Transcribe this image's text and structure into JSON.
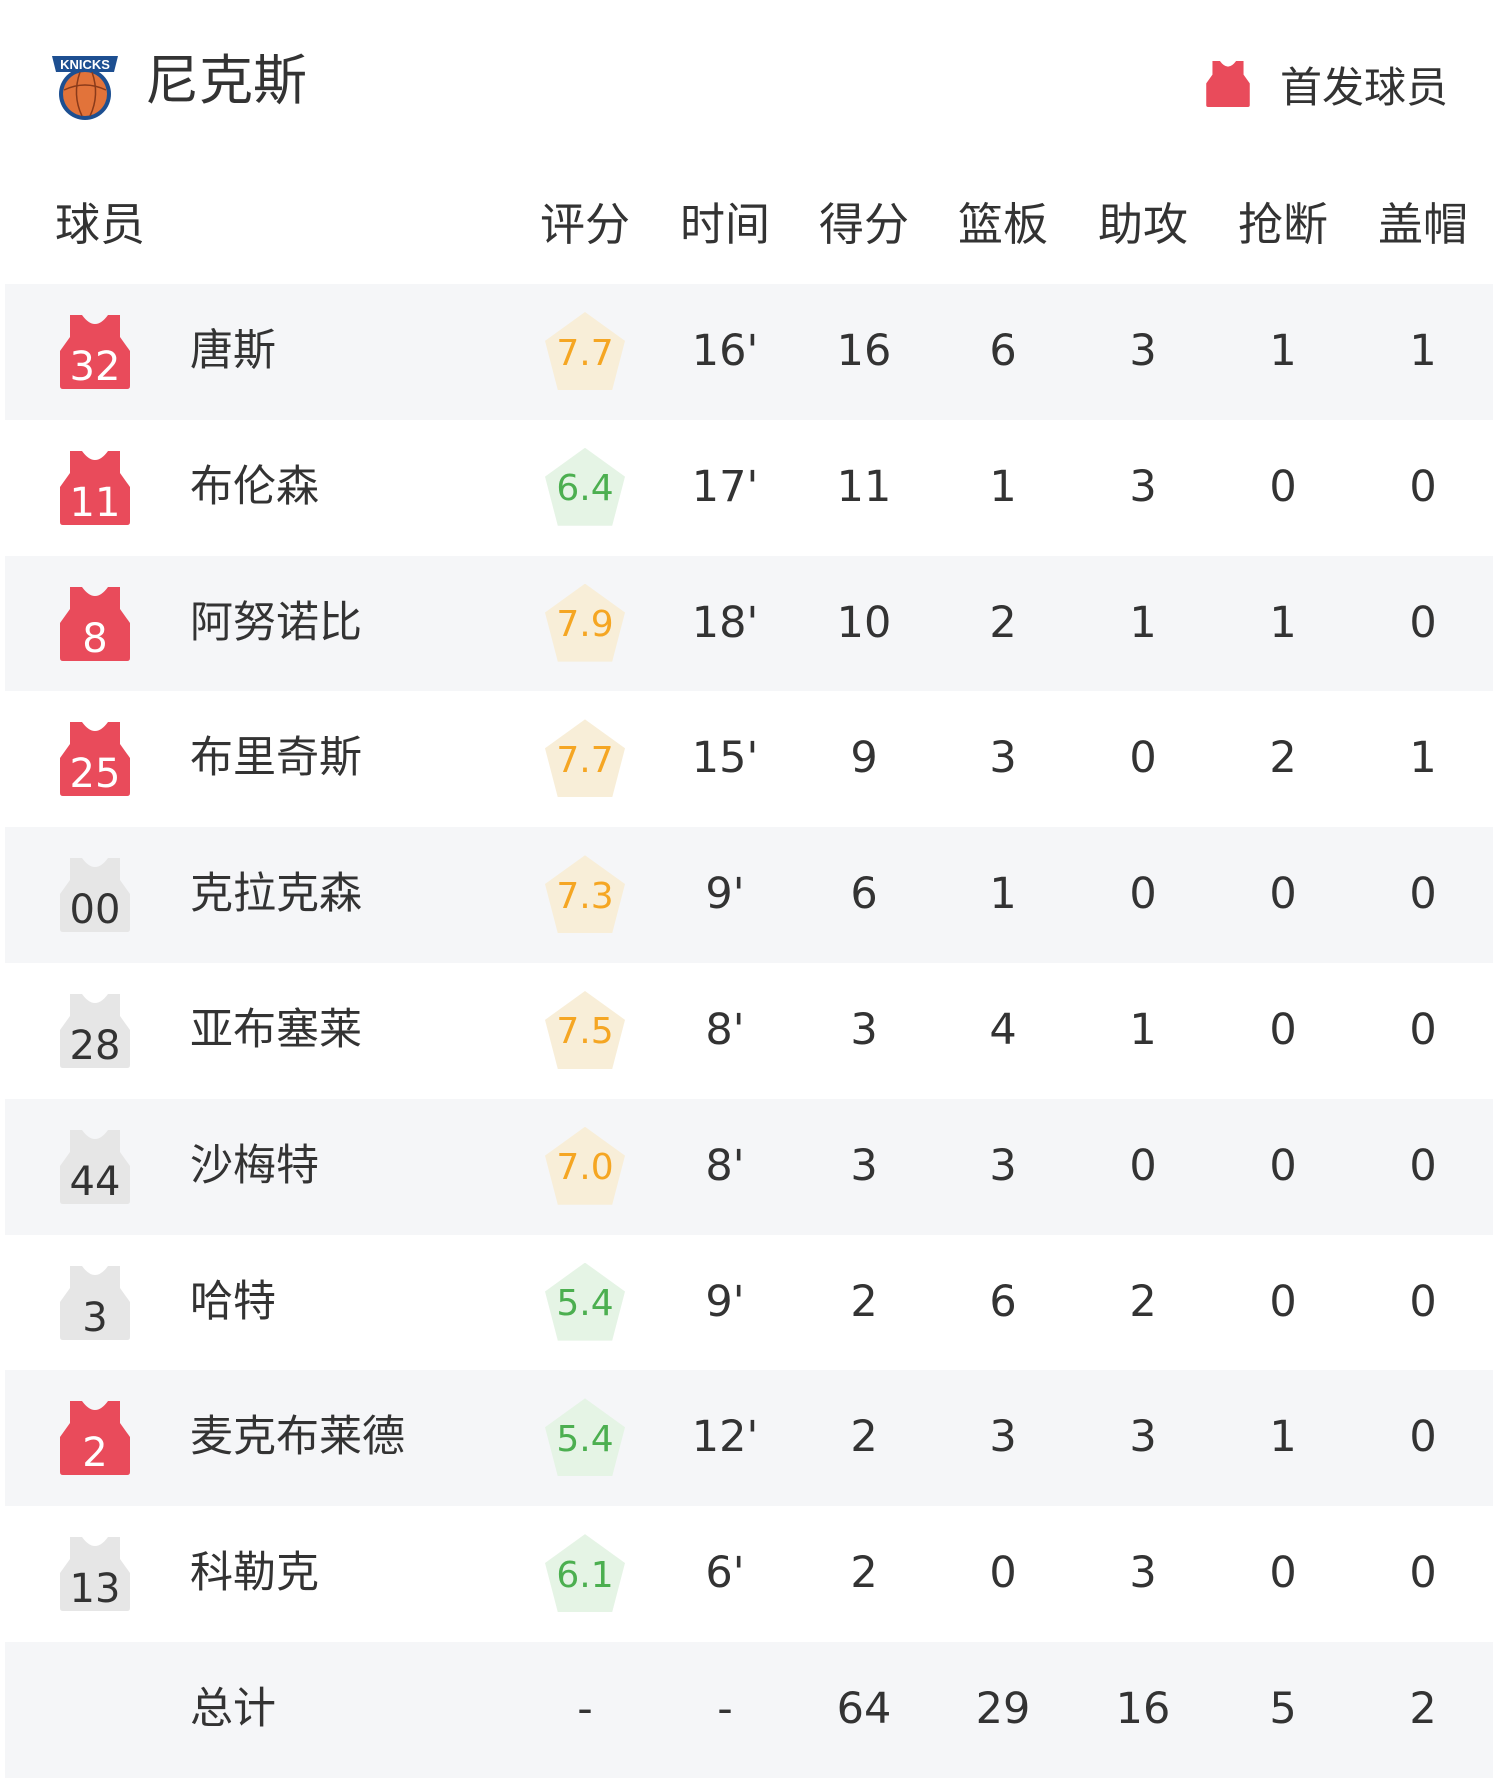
{
  "header": {
    "team_name": "尼克斯",
    "logo_text": "KNICKS",
    "legend_label": "首发球员"
  },
  "colors": {
    "starter_jersey": "#e94b5b",
    "bench_jersey": "#e6e6e6",
    "rating_high_text": "#f5a623",
    "rating_high_bg": "#f8eed8",
    "rating_low_text": "#4caf50",
    "rating_low_bg": "#e5f4e5",
    "row_alt_bg": "#f5f6f8"
  },
  "columns": {
    "player": "球员",
    "rating": "评分",
    "time": "时间",
    "points": "得分",
    "rebounds": "篮板",
    "assists": "助攻",
    "steals": "抢断",
    "blocks": "盖帽"
  },
  "players": [
    {
      "number": "32",
      "name": "唐斯",
      "starter": true,
      "rating": "7.7",
      "time": "16'",
      "points": "16",
      "rebounds": "6",
      "assists": "3",
      "steals": "1",
      "blocks": "1"
    },
    {
      "number": "11",
      "name": "布伦森",
      "starter": true,
      "rating": "6.4",
      "time": "17'",
      "points": "11",
      "rebounds": "1",
      "assists": "3",
      "steals": "0",
      "blocks": "0"
    },
    {
      "number": "8",
      "name": "阿努诺比",
      "starter": true,
      "rating": "7.9",
      "time": "18'",
      "points": "10",
      "rebounds": "2",
      "assists": "1",
      "steals": "1",
      "blocks": "0"
    },
    {
      "number": "25",
      "name": "布里奇斯",
      "starter": true,
      "rating": "7.7",
      "time": "15'",
      "points": "9",
      "rebounds": "3",
      "assists": "0",
      "steals": "2",
      "blocks": "1"
    },
    {
      "number": "00",
      "name": "克拉克森",
      "starter": false,
      "rating": "7.3",
      "time": "9'",
      "points": "6",
      "rebounds": "1",
      "assists": "0",
      "steals": "0",
      "blocks": "0"
    },
    {
      "number": "28",
      "name": "亚布塞莱",
      "starter": false,
      "rating": "7.5",
      "time": "8'",
      "points": "3",
      "rebounds": "4",
      "assists": "1",
      "steals": "0",
      "blocks": "0"
    },
    {
      "number": "44",
      "name": "沙梅特",
      "starter": false,
      "rating": "7.0",
      "time": "8'",
      "points": "3",
      "rebounds": "3",
      "assists": "0",
      "steals": "0",
      "blocks": "0"
    },
    {
      "number": "3",
      "name": "哈特",
      "starter": false,
      "rating": "5.4",
      "time": "9'",
      "points": "2",
      "rebounds": "6",
      "assists": "2",
      "steals": "0",
      "blocks": "0"
    },
    {
      "number": "2",
      "name": "麦克布莱德",
      "starter": true,
      "rating": "5.4",
      "time": "12'",
      "points": "2",
      "rebounds": "3",
      "assists": "3",
      "steals": "1",
      "blocks": "0"
    },
    {
      "number": "13",
      "name": "科勒克",
      "starter": false,
      "rating": "6.1",
      "time": "6'",
      "points": "2",
      "rebounds": "0",
      "assists": "3",
      "steals": "0",
      "blocks": "0"
    }
  ],
  "totals": {
    "label": "总计",
    "rating": "-",
    "time": "-",
    "points": "64",
    "rebounds": "29",
    "assists": "16",
    "steals": "5",
    "blocks": "2"
  }
}
